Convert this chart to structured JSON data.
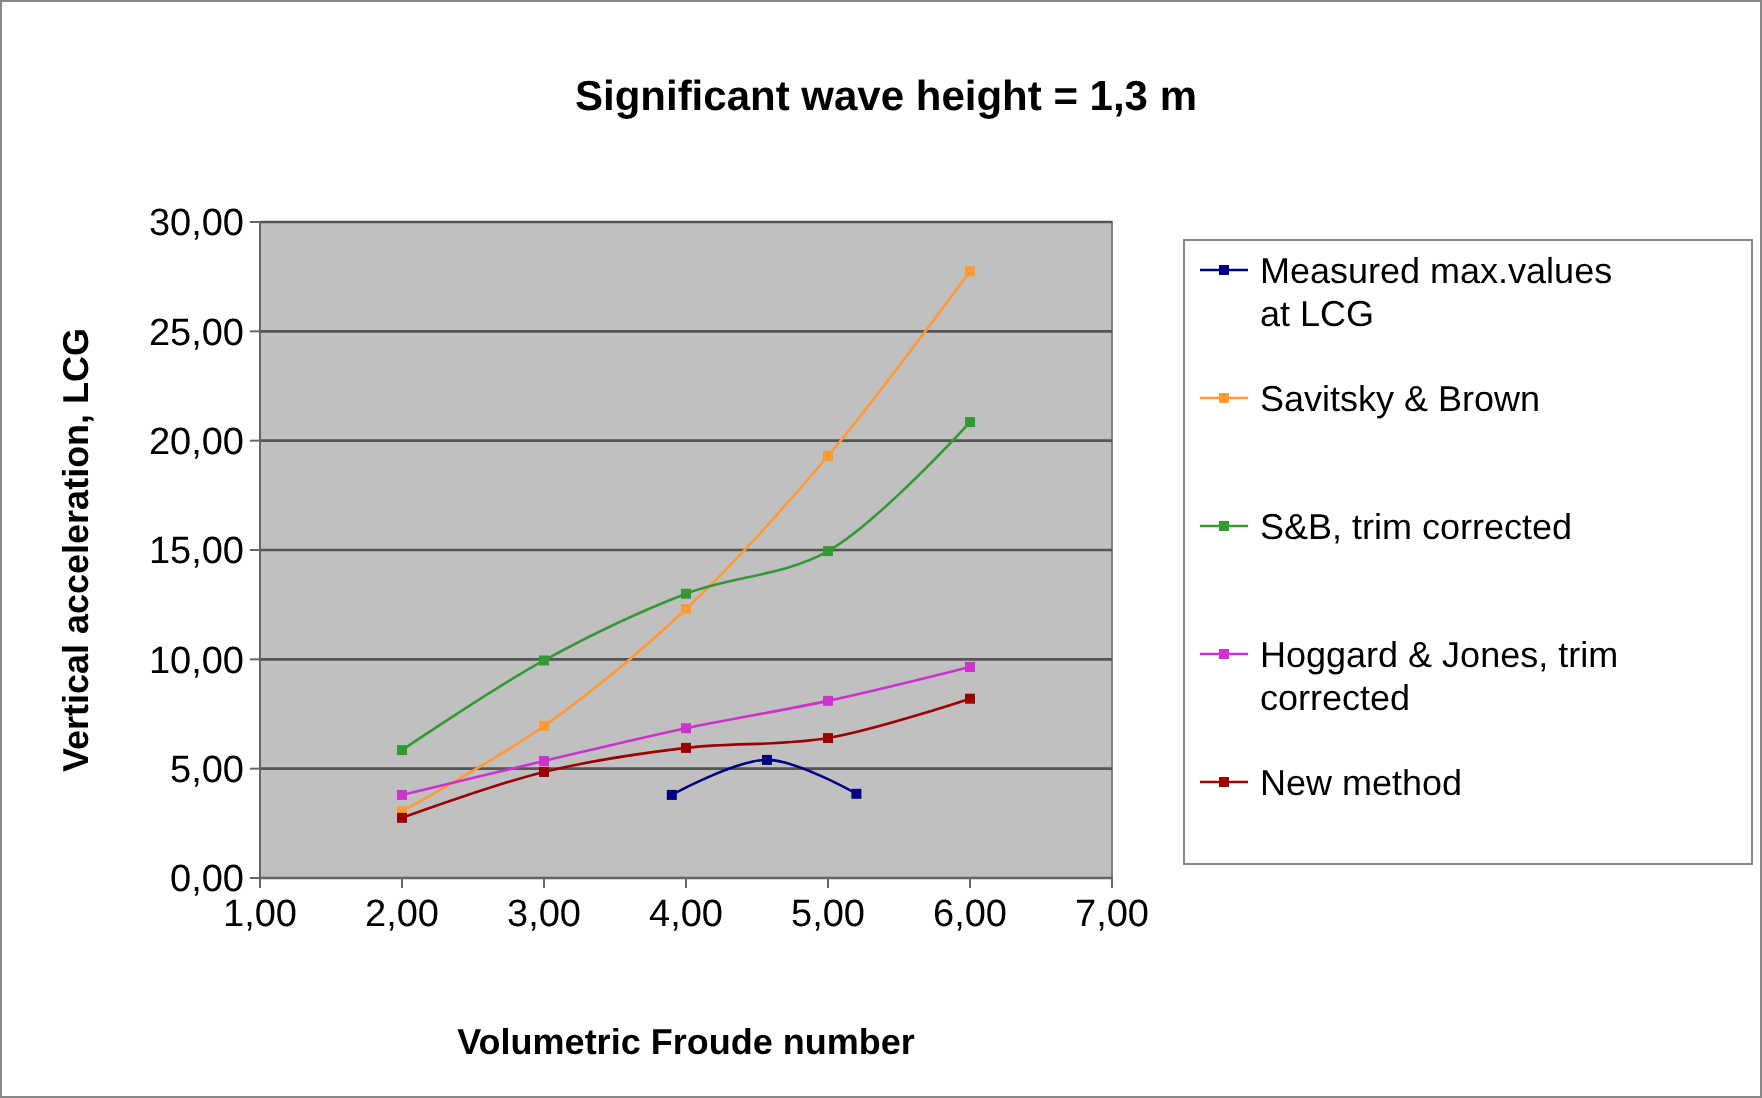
{
  "chart_data": {
    "type": "line",
    "title": "Significant wave height = 1,3 m",
    "xlabel": "Volumetric Froude number",
    "ylabel": "Vertical acceleration,  LCG",
    "xlim": [
      1,
      7
    ],
    "xticks": [
      {
        "value": 1,
        "label": "1,00"
      },
      {
        "value": 2,
        "label": "2,00"
      },
      {
        "value": 3,
        "label": "3,00"
      },
      {
        "value": 4,
        "label": "4,00"
      },
      {
        "value": 5,
        "label": "5,00"
      },
      {
        "value": 6,
        "label": "6,00"
      },
      {
        "value": 7,
        "label": "7,00"
      }
    ],
    "ylim": [
      0,
      30
    ],
    "yticks": [
      {
        "value": 0,
        "label": "0,00"
      },
      {
        "value": 5,
        "label": "5,00"
      },
      {
        "value": 10,
        "label": "10,00"
      },
      {
        "value": 15,
        "label": "15,00"
      },
      {
        "value": 20,
        "label": "20,00"
      },
      {
        "value": 25,
        "label": "25,00"
      },
      {
        "value": 30,
        "label": "30,00"
      }
    ],
    "grid": "y",
    "legend": "right",
    "marker": "square",
    "line_style": "solid",
    "series": [
      {
        "name": "Measured max.values at LCG",
        "color": "#000080",
        "x": [
          3.9,
          4.57,
          5.2
        ],
        "values": [
          3.8,
          5.4,
          3.85
        ]
      },
      {
        "name": "Savitsky & Brown",
        "color": "#ff9933",
        "x": [
          2,
          3,
          4,
          5,
          6
        ],
        "values": [
          3.05,
          6.95,
          12.3,
          19.3,
          27.75
        ]
      },
      {
        "name": "S&B, trim corrected",
        "color": "#339933",
        "x": [
          2,
          3,
          4,
          5,
          6
        ],
        "values": [
          5.85,
          9.95,
          13,
          14.95,
          20.85
        ]
      },
      {
        "name": "Hoggard & Jones, trim corrected",
        "color": "#cc33cc",
        "x": [
          2,
          3,
          4,
          5,
          6
        ],
        "values": [
          3.8,
          5.35,
          6.85,
          8.1,
          9.65
        ]
      },
      {
        "name": "New method",
        "color": "#990000",
        "x": [
          2,
          3,
          4,
          5,
          6
        ],
        "values": [
          2.75,
          4.85,
          5.95,
          6.4,
          8.2
        ]
      }
    ]
  }
}
